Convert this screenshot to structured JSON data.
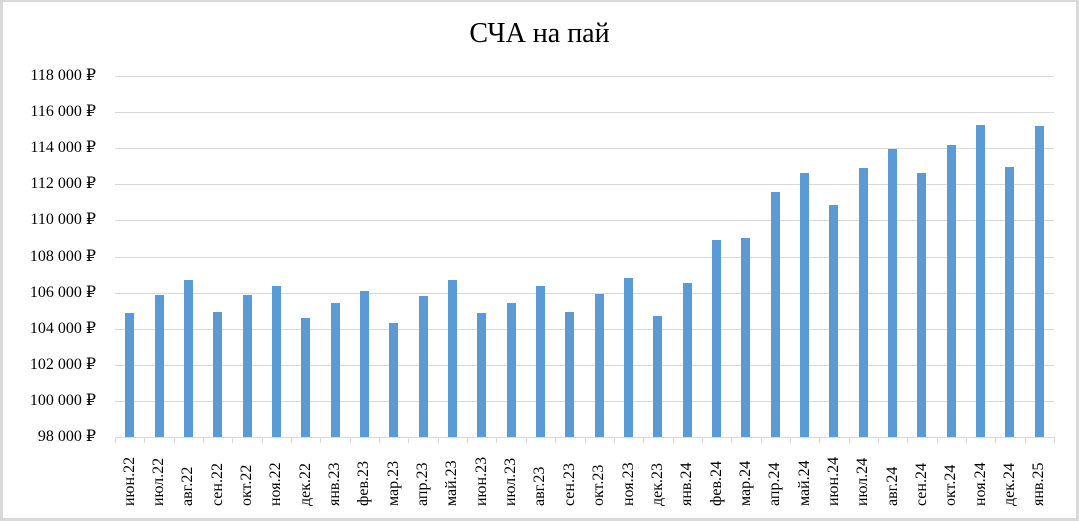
{
  "chart_data": {
    "type": "bar",
    "title": "СЧА на пай",
    "xlabel": "",
    "ylabel": "",
    "ylim": [
      98000,
      118000
    ],
    "y_ticks": [
      98000,
      100000,
      102000,
      104000,
      106000,
      108000,
      110000,
      112000,
      114000,
      116000,
      118000
    ],
    "y_tick_labels": [
      "98 000 ₽",
      "100 000 ₽",
      "102 000 ₽",
      "104 000 ₽",
      "106 000 ₽",
      "108 000 ₽",
      "110 000 ₽",
      "112 000 ₽",
      "114 000 ₽",
      "116 000 ₽",
      "118 000 ₽"
    ],
    "grid": true,
    "legend": null,
    "bar_color": "#5b9bd5",
    "gridline_color": "#d9d9d9",
    "categories": [
      "июн.22",
      "июл.22",
      "авг.22",
      "сен.22",
      "окт.22",
      "ноя.22",
      "дек.22",
      "янв.23",
      "фев.23",
      "мар.23",
      "апр.23",
      "май.23",
      "июн.23",
      "июл.23",
      "авг.23",
      "сен.23",
      "окт.23",
      "ноя.23",
      "дек.23",
      "янв.24",
      "фев.24",
      "мар.24",
      "апр.24",
      "май.24",
      "июн.24",
      "июл.24",
      "авг.24",
      "сен.24",
      "окт.24",
      "ноя.24",
      "дек.24",
      "янв.25"
    ],
    "values": [
      104850,
      105850,
      106700,
      104950,
      105850,
      106350,
      104600,
      105400,
      106100,
      104300,
      105800,
      106700,
      104850,
      105450,
      106350,
      104900,
      105950,
      106800,
      104700,
      106550,
      108900,
      109050,
      111550,
      112650,
      110850,
      112900,
      113950,
      112650,
      114150,
      115300,
      112950,
      115250
    ]
  }
}
